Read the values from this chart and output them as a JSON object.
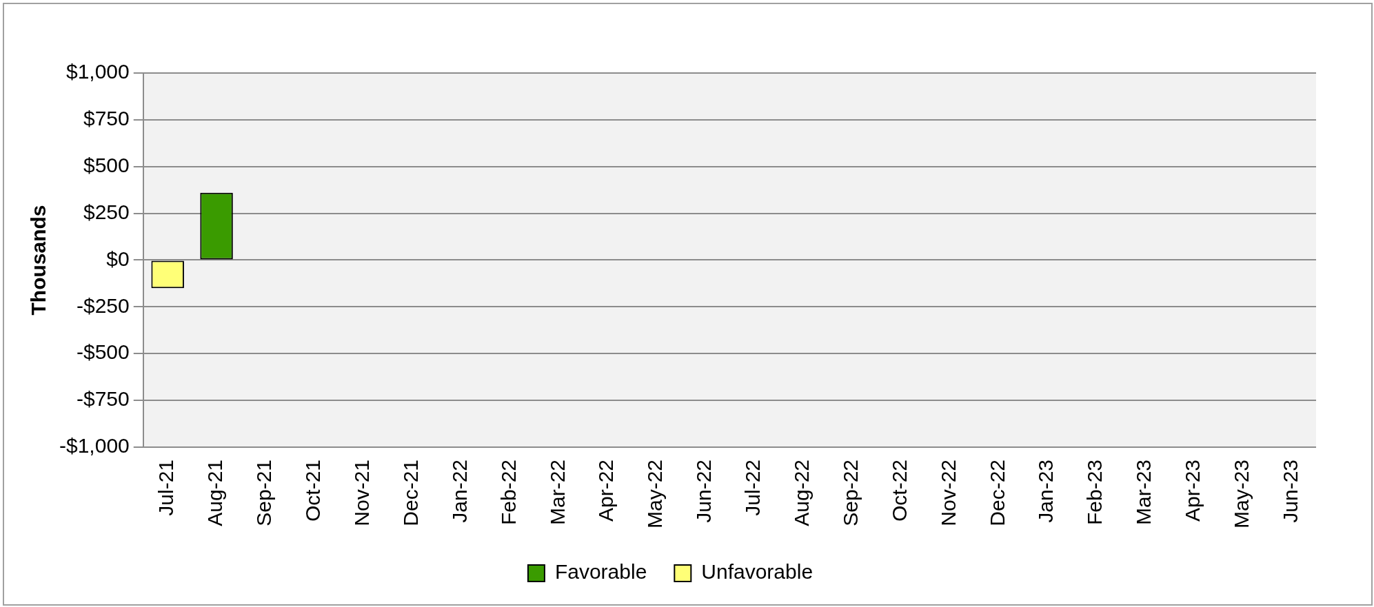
{
  "chart_data": {
    "type": "bar",
    "ylabel": "Thousands",
    "categories": [
      "Jul-21",
      "Aug-21",
      "Sep-21",
      "Oct-21",
      "Nov-21",
      "Dec-21",
      "Jan-22",
      "Feb-22",
      "Mar-22",
      "Apr-22",
      "May-22",
      "Jun-22",
      "Jul-22",
      "Aug-22",
      "Sep-22",
      "Oct-22",
      "Nov-22",
      "Dec-22",
      "Jan-23",
      "Feb-23",
      "Mar-23",
      "Apr-23",
      "May-23",
      "Jun-23"
    ],
    "series": [
      {
        "name": "Favorable",
        "color": "#3a9b00",
        "values": [
          null,
          360,
          null,
          null,
          null,
          null,
          null,
          null,
          null,
          null,
          null,
          null,
          null,
          null,
          null,
          null,
          null,
          null,
          null,
          null,
          null,
          null,
          null,
          null
        ]
      },
      {
        "name": "Unfavorable",
        "color": "#ffff77",
        "values": [
          -150,
          null,
          null,
          null,
          null,
          null,
          null,
          null,
          null,
          null,
          null,
          null,
          null,
          null,
          null,
          null,
          null,
          null,
          null,
          null,
          null,
          null,
          null,
          null
        ]
      }
    ],
    "stacked": true,
    "ylim": [
      -1000,
      1000
    ],
    "yticks": [
      {
        "value": -1000,
        "label": "-$1,000"
      },
      {
        "value": -750,
        "label": "-$750"
      },
      {
        "value": -500,
        "label": "-$500"
      },
      {
        "value": -250,
        "label": "-$250"
      },
      {
        "value": 0,
        "label": "$0"
      },
      {
        "value": 250,
        "label": "$250"
      },
      {
        "value": 500,
        "label": "$500"
      },
      {
        "value": 750,
        "label": "$750"
      },
      {
        "value": 1000,
        "label": "$1,000"
      }
    ],
    "grid": "y",
    "legend": "bottom"
  }
}
